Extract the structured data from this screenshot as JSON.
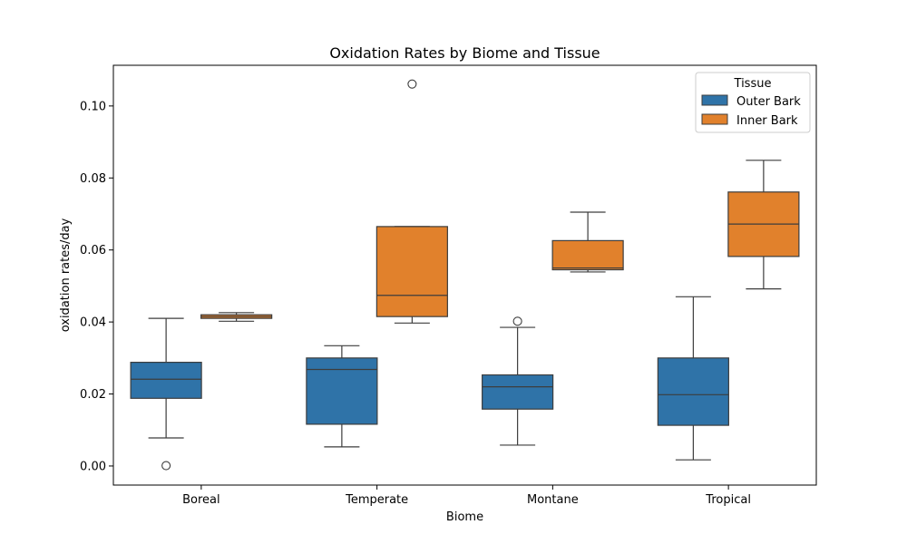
{
  "chart_data": {
    "type": "box",
    "title": "Oxidation Rates by Biome and Tissue",
    "xlabel": "Biome",
    "ylabel": "oxidation rates/day",
    "categories": [
      "Boreal",
      "Temperate",
      "Montane",
      "Tropical"
    ],
    "ylim": [
      -0.0053,
      0.1113
    ],
    "yticks": [
      0.0,
      0.02,
      0.04,
      0.06,
      0.08,
      0.1
    ],
    "ytick_labels": [
      "0.00",
      "0.02",
      "0.04",
      "0.06",
      "0.08",
      "0.10"
    ],
    "grid": false,
    "legend": {
      "title": "Tissue",
      "position": "top-right"
    },
    "series": [
      {
        "name": "Outer Bark",
        "color": "#2f73a8",
        "boxes": [
          {
            "whisker_low": 0.0078,
            "q1": 0.0188,
            "median": 0.0241,
            "q3": 0.0288,
            "whisker_high": 0.041,
            "outliers": [
              0.0001
            ]
          },
          {
            "whisker_low": 0.0053,
            "q1": 0.0116,
            "median": 0.0268,
            "q3": 0.03,
            "whisker_high": 0.0334,
            "outliers": []
          },
          {
            "whisker_low": 0.0058,
            "q1": 0.0158,
            "median": 0.022,
            "q3": 0.0253,
            "whisker_high": 0.0385,
            "outliers": [
              0.0402
            ]
          },
          {
            "whisker_low": 0.0017,
            "q1": 0.0113,
            "median": 0.0198,
            "q3": 0.03,
            "whisker_high": 0.047,
            "outliers": []
          }
        ]
      },
      {
        "name": "Inner Bark",
        "color": "#e1812c",
        "boxes": [
          {
            "whisker_low": 0.0402,
            "q1": 0.041,
            "median": 0.0415,
            "q3": 0.042,
            "whisker_high": 0.0426,
            "outliers": []
          },
          {
            "whisker_low": 0.0397,
            "q1": 0.0415,
            "median": 0.0474,
            "q3": 0.0665,
            "whisker_high": 0.0665,
            "outliers": [
              0.1061
            ]
          },
          {
            "whisker_low": 0.0539,
            "q1": 0.0545,
            "median": 0.055,
            "q3": 0.0626,
            "whisker_high": 0.0705,
            "outliers": []
          },
          {
            "whisker_low": 0.0492,
            "q1": 0.0582,
            "median": 0.0672,
            "q3": 0.0761,
            "whisker_high": 0.0849,
            "outliers": []
          }
        ]
      }
    ]
  }
}
